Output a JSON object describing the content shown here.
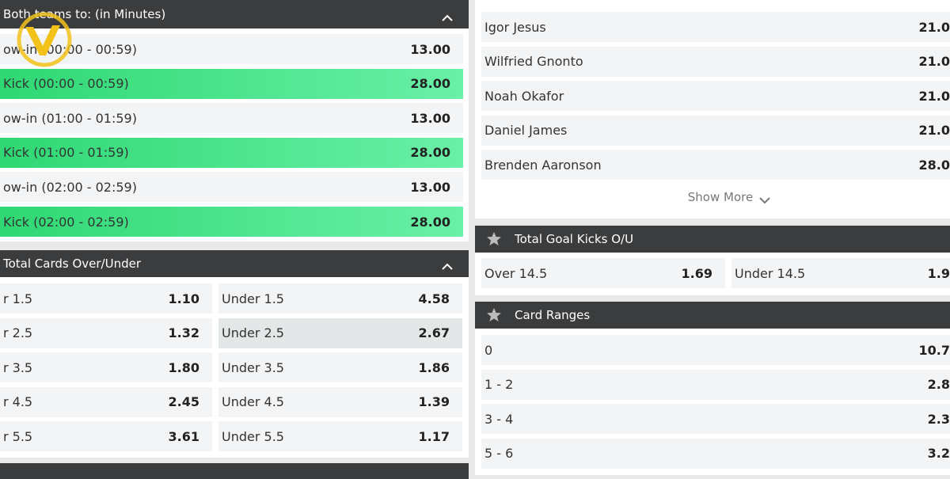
{
  "left": {
    "section1": {
      "title": "Both teams to: (in Minutes)",
      "rows": [
        {
          "label": "ow-in (00:00 - 00:59)",
          "odds": "13.00"
        },
        {
          "label": "Kick (00:00 - 00:59)",
          "odds": "28.00"
        },
        {
          "label": "ow-in (01:00 - 01:59)",
          "odds": "13.00"
        },
        {
          "label": "Kick (01:00 - 01:59)",
          "odds": "28.00"
        },
        {
          "label": "ow-in (02:00 - 02:59)",
          "odds": "13.00"
        },
        {
          "label": "Kick (02:00 - 02:59)",
          "odds": "28.00"
        }
      ]
    },
    "section2": {
      "title": "Total Cards Over/Under",
      "rows": [
        [
          {
            "label": "r 1.5",
            "odds": "1.10"
          },
          {
            "label": "Under 1.5",
            "odds": "4.58"
          }
        ],
        [
          {
            "label": "r 2.5",
            "odds": "1.32"
          },
          {
            "label": "Under 2.5",
            "odds": "2.67"
          }
        ],
        [
          {
            "label": "r 3.5",
            "odds": "1.80"
          },
          {
            "label": "Under 3.5",
            "odds": "1.86"
          }
        ],
        [
          {
            "label": "r 4.5",
            "odds": "2.45"
          },
          {
            "label": "Under 4.5",
            "odds": "1.39"
          }
        ],
        [
          {
            "label": "r 5.5",
            "odds": "3.61"
          },
          {
            "label": "Under 5.5",
            "odds": "1.17"
          }
        ]
      ]
    }
  },
  "right": {
    "players": {
      "rows": [
        {
          "label": "Igor Jesus",
          "odds": "21.0"
        },
        {
          "label": "Wilfried Gnonto",
          "odds": "21.0"
        },
        {
          "label": "Noah Okafor",
          "odds": "21.0"
        },
        {
          "label": "Daniel James",
          "odds": "21.0"
        },
        {
          "label": "Brenden Aaronson",
          "odds": "28.0"
        }
      ],
      "show_more": "Show More"
    },
    "goal_kicks": {
      "title": "Total Goal Kicks O/U",
      "rows": [
        {
          "label": "Over 14.5",
          "odds": "1.69"
        },
        {
          "label": "Under 14.5",
          "odds": "1.9"
        }
      ]
    },
    "card_ranges": {
      "title": "Card Ranges",
      "rows": [
        {
          "label": "0",
          "odds": "10.7"
        },
        {
          "label": "1 - 2",
          "odds": "2.8"
        },
        {
          "label": "3 - 4",
          "odds": "2.3"
        },
        {
          "label": "5 - 6",
          "odds": "3.2"
        }
      ]
    }
  }
}
